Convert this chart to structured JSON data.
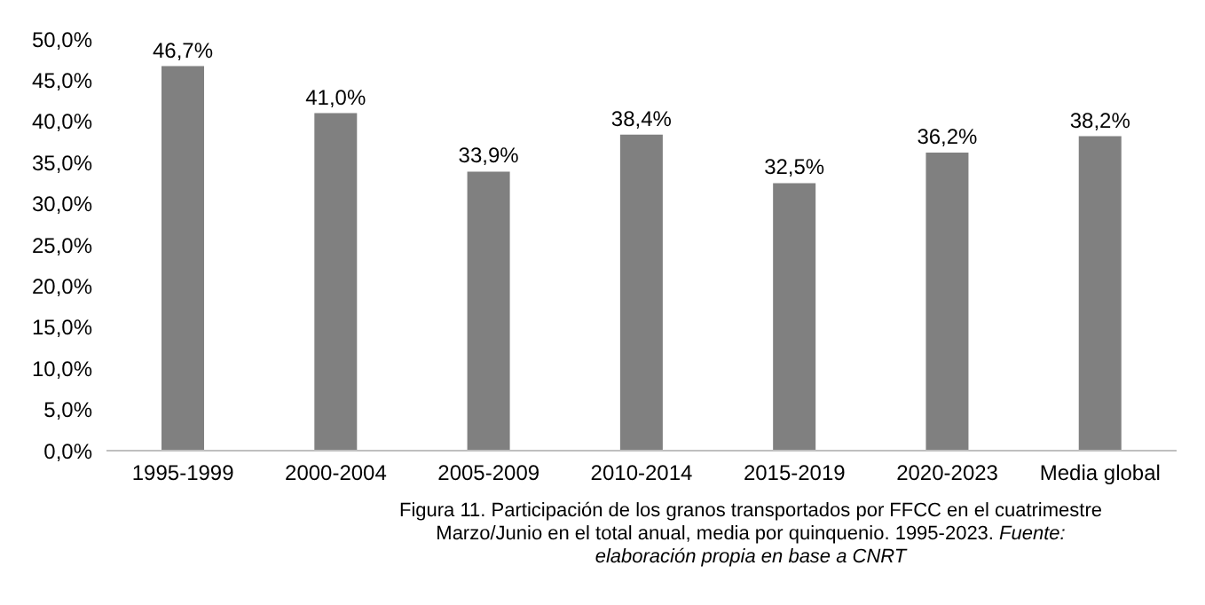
{
  "chart_data": {
    "type": "bar",
    "categories": [
      "1995-1999",
      "2000-2004",
      "2005-2009",
      "2010-2014",
      "2015-2019",
      "2020-2023",
      "Media global"
    ],
    "values": [
      46.7,
      41.0,
      33.9,
      38.4,
      32.5,
      36.2,
      38.2
    ],
    "value_labels": [
      "46,7%",
      "41,0%",
      "33,9%",
      "38,4%",
      "32,5%",
      "36,2%",
      "38,2%"
    ],
    "color": "#808080",
    "ylim": [
      0,
      50
    ],
    "yticks": [
      {
        "value": 0,
        "label": "0,0%"
      },
      {
        "value": 5,
        "label": "5,0%"
      },
      {
        "value": 10,
        "label": "10,0%"
      },
      {
        "value": 15,
        "label": "15,0%"
      },
      {
        "value": 20,
        "label": "20,0%"
      },
      {
        "value": 25,
        "label": "25,0%"
      },
      {
        "value": 30,
        "label": "30,0%"
      },
      {
        "value": 35,
        "label": "35,0%"
      },
      {
        "value": 40,
        "label": "40,0%"
      },
      {
        "value": 45,
        "label": "45,0%"
      },
      {
        "value": 50,
        "label": "50,0%"
      }
    ],
    "grid": false,
    "legend": false,
    "annotations": [
      "Figura 11. Participación de los granos transportados por FFCC en el cuatrimestre Marzo/Junio en el total anual, media por quinquenio. 1995-2023.",
      "Fuente: elaboración propia en base a CNRT"
    ]
  }
}
